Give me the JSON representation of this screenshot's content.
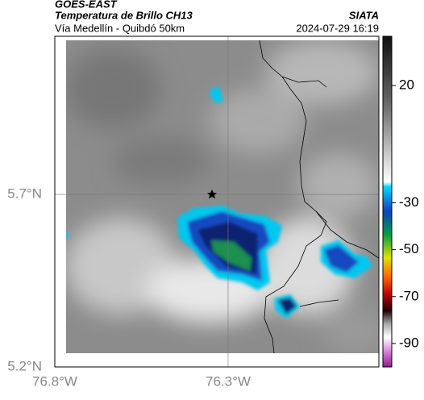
{
  "header": {
    "source": "GOES-EAST",
    "product": "Temperatura de Brillo CH13",
    "region": "Vía Medellín - Quibdó 50km",
    "agency": "SIATA",
    "timestamp": "2024-07-29 16:19"
  },
  "map": {
    "xlim": [
      -76.8,
      -75.865
    ],
    "ylim": [
      5.2,
      6.158
    ],
    "xticks": [
      {
        "value": -76.8,
        "label": "76.8°W"
      },
      {
        "value": -76.3,
        "label": "76.3°W"
      }
    ],
    "yticks": [
      {
        "value": 5.2,
        "label": "5.2°N"
      },
      {
        "value": 5.7,
        "label": "5.7°N"
      }
    ],
    "grid": true
  },
  "colorbar": {
    "lim": [
      -100,
      41
    ],
    "ticks": [
      20,
      -30,
      -50,
      -70,
      -90
    ]
  }
}
